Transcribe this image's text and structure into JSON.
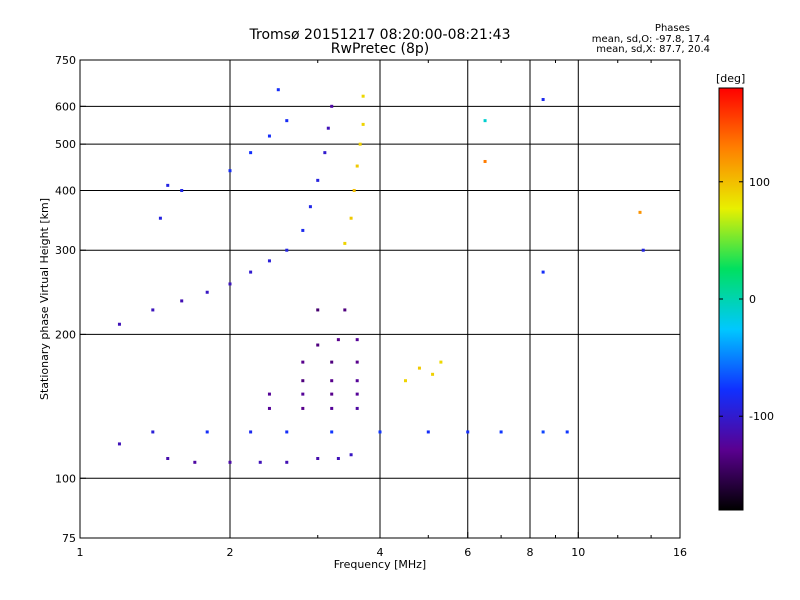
{
  "header": {
    "title_line1": "Tromsø 20151217 08:20:00-08:21:43",
    "title_line2": "RwPretec (8p)"
  },
  "phases": {
    "heading": "Phases",
    "line_o": "mean, sd,O: -97.8, 17.4",
    "line_x": "mean, sd,X:  87.7, 20.4"
  },
  "colorbar": {
    "unit": "[deg]",
    "ticks": [
      {
        "label": "100",
        "value": 100
      },
      {
        "label": "0",
        "value": 0
      },
      {
        "label": "-100",
        "value": -100
      }
    ],
    "range": [
      -180,
      180
    ],
    "colors": [
      "#000000",
      "#5a0090",
      "#1030ff",
      "#00c8ff",
      "#00e060",
      "#e8f000",
      "#ff8000",
      "#ff0000"
    ]
  },
  "chart_data": {
    "type": "scatter",
    "title": "Tromsø 20151217 08:20:00-08:21:43",
    "subtitle": "RwPretec (8p)",
    "xlabel": "Frequency [MHz]",
    "ylabel": "Stationary phase Virtual Height [km]",
    "x_scale": "log",
    "y_scale": "log",
    "xlim": [
      1,
      16
    ],
    "ylim": [
      75,
      750
    ],
    "x_ticks": [
      1,
      2,
      4,
      6,
      8,
      10,
      16
    ],
    "x_tick_labels": [
      "1",
      "2",
      "4",
      "6",
      "8",
      "10",
      "16"
    ],
    "y_ticks": [
      75,
      100,
      200,
      300,
      400,
      500,
      600,
      750
    ],
    "y_tick_labels": [
      "75",
      "100",
      "200",
      "300",
      "400",
      "500",
      "600",
      "750"
    ],
    "grid": true,
    "color_variable": "phase [deg]",
    "series": [
      {
        "values": [
          [
            1.5,
            110,
            -115
          ],
          [
            1.7,
            108,
            -120
          ],
          [
            2.0,
            108,
            -118
          ],
          [
            2.3,
            108,
            -110
          ],
          [
            2.6,
            108,
            -112
          ],
          [
            3.0,
            110,
            -115
          ],
          [
            3.3,
            110,
            -110
          ],
          [
            3.5,
            112,
            -105
          ],
          [
            1.2,
            118,
            -110
          ],
          [
            1.4,
            125,
            -95
          ],
          [
            1.8,
            125,
            -80
          ],
          [
            2.2,
            125,
            -85
          ],
          [
            2.6,
            125,
            -80
          ],
          [
            3.2,
            125,
            -75
          ],
          [
            4.0,
            125,
            -75
          ],
          [
            5.0,
            125,
            -80
          ],
          [
            6.0,
            125,
            -80
          ],
          [
            7.0,
            125,
            -75
          ],
          [
            8.5,
            125,
            -70
          ],
          [
            9.5,
            125,
            -75
          ],
          [
            2.4,
            140,
            -125
          ],
          [
            2.8,
            140,
            -130
          ],
          [
            3.2,
            140,
            -125
          ],
          [
            3.6,
            140,
            -120
          ],
          [
            2.4,
            150,
            -125
          ],
          [
            2.8,
            150,
            -125
          ],
          [
            3.2,
            150,
            -130
          ],
          [
            3.6,
            150,
            -125
          ],
          [
            2.8,
            160,
            -135
          ],
          [
            3.2,
            160,
            -130
          ],
          [
            3.6,
            160,
            -125
          ],
          [
            2.8,
            175,
            -130
          ],
          [
            3.2,
            175,
            -135
          ],
          [
            3.6,
            175,
            -130
          ],
          [
            3.0,
            190,
            -135
          ],
          [
            3.3,
            195,
            -130
          ],
          [
            3.6,
            195,
            -125
          ],
          [
            3.0,
            225,
            -140
          ],
          [
            3.4,
            225,
            -135
          ],
          [
            4.5,
            160,
            90
          ],
          [
            4.8,
            170,
            95
          ],
          [
            5.1,
            165,
            92
          ],
          [
            5.3,
            175,
            88
          ],
          [
            1.2,
            210,
            -110
          ],
          [
            1.4,
            225,
            -108
          ],
          [
            1.6,
            235,
            -112
          ],
          [
            1.8,
            245,
            -105
          ],
          [
            2.0,
            255,
            -108
          ],
          [
            2.2,
            270,
            -100
          ],
          [
            2.4,
            285,
            -95
          ],
          [
            2.6,
            300,
            -90
          ],
          [
            2.8,
            330,
            -85
          ],
          [
            2.9,
            370,
            -88
          ],
          [
            3.0,
            420,
            -92
          ],
          [
            3.1,
            480,
            -100
          ],
          [
            3.15,
            540,
            -110
          ],
          [
            3.2,
            600,
            -120
          ],
          [
            2.0,
            440,
            -80
          ],
          [
            2.2,
            480,
            -78
          ],
          [
            2.4,
            520,
            -80
          ],
          [
            2.6,
            560,
            -82
          ],
          [
            2.5,
            650,
            -80
          ],
          [
            1.5,
            410,
            -90
          ],
          [
            1.6,
            400,
            -88
          ],
          [
            1.45,
            350,
            -92
          ],
          [
            3.4,
            310,
            90
          ],
          [
            3.5,
            350,
            95
          ],
          [
            3.55,
            400,
            100
          ],
          [
            3.6,
            450,
            95
          ],
          [
            3.65,
            500,
            92
          ],
          [
            3.7,
            550,
            90
          ],
          [
            3.7,
            630,
            88
          ],
          [
            8.5,
            270,
            -80
          ],
          [
            8.5,
            620,
            -85
          ],
          [
            13.5,
            300,
            -90
          ],
          [
            13.3,
            360,
            120
          ],
          [
            6.5,
            560,
            -10
          ],
          [
            6.5,
            460,
            130
          ]
        ]
      }
    ]
  }
}
